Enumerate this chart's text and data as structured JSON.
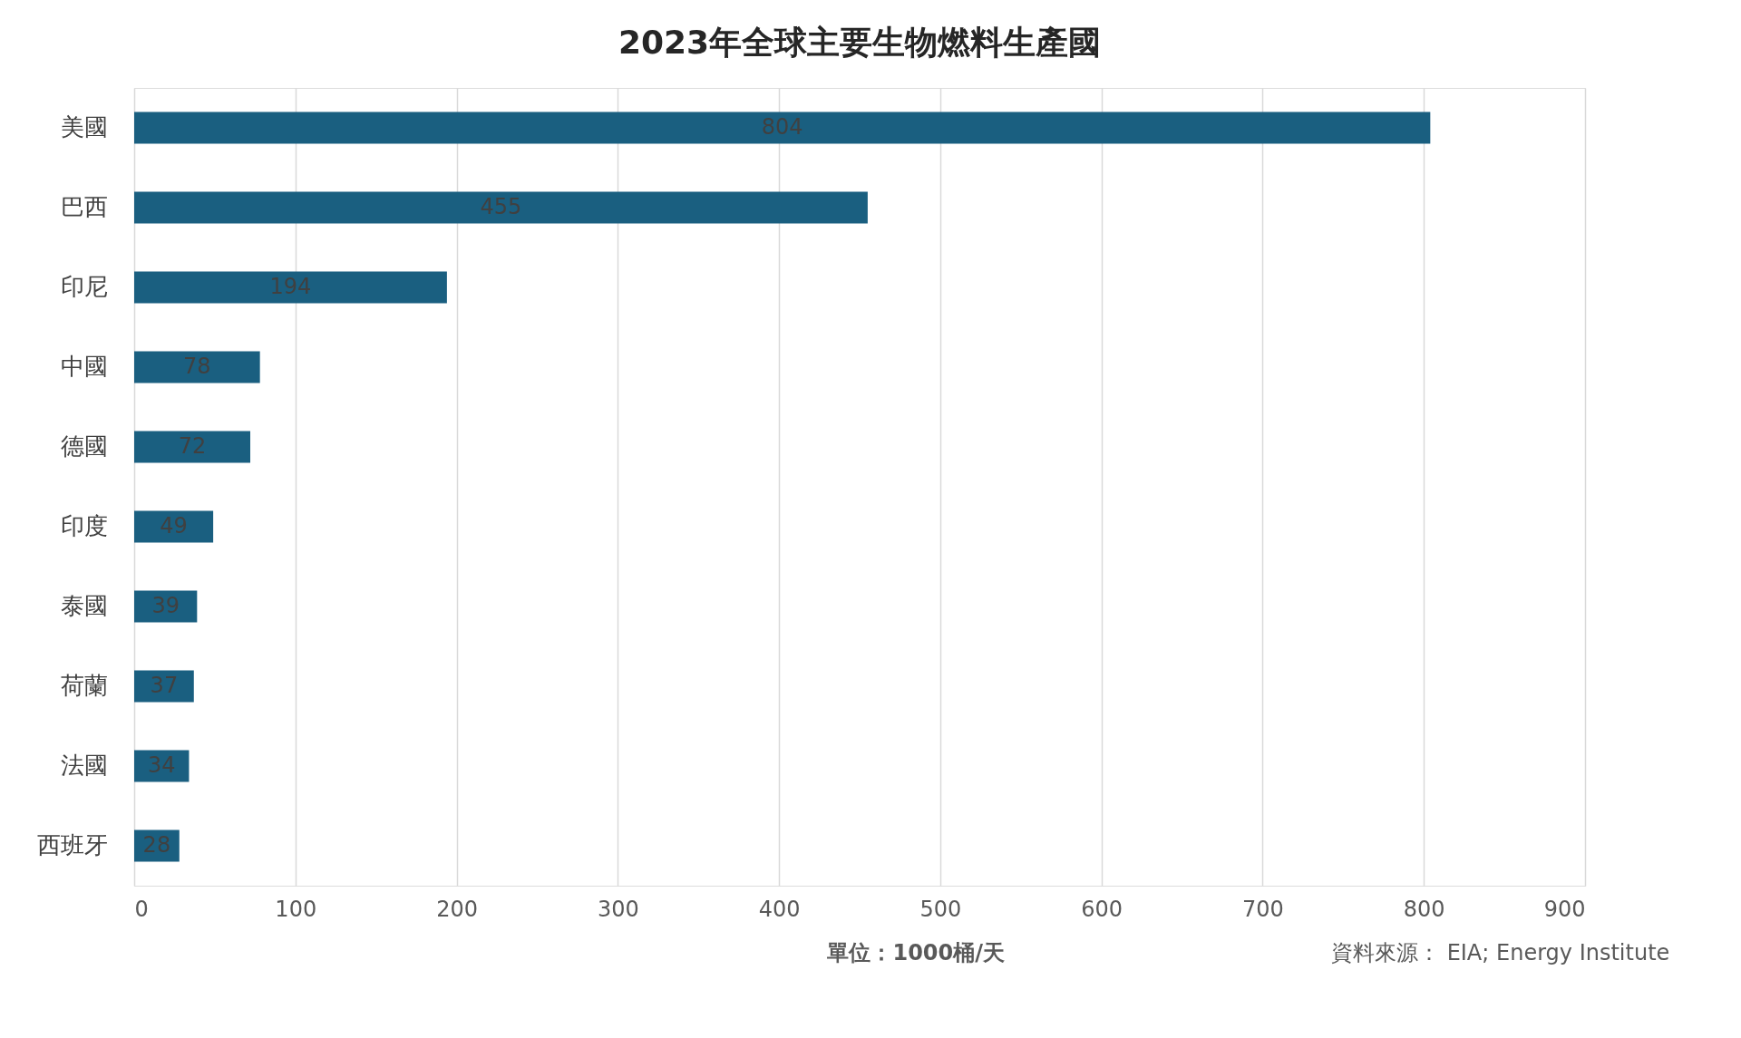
{
  "chart_data": {
    "type": "bar",
    "orientation": "horizontal",
    "title": "2023年全球主要生物燃料生產國",
    "categories": [
      "美國",
      "巴西",
      "印尼",
      "中國",
      "德國",
      "印度",
      "泰國",
      "荷蘭",
      "法國",
      "西班牙"
    ],
    "values": [
      804,
      455,
      194,
      78,
      72,
      49,
      39,
      37,
      34,
      28
    ],
    "color": "#1a5f80",
    "xlim": [
      0,
      900
    ],
    "xticks": [
      0,
      100,
      200,
      300,
      400,
      500,
      600,
      700,
      800,
      900
    ],
    "grid": "x",
    "data_labels": true,
    "annotations": [
      "單位：1000桶/天",
      "資料來源： EIA; Energy Institute"
    ]
  }
}
